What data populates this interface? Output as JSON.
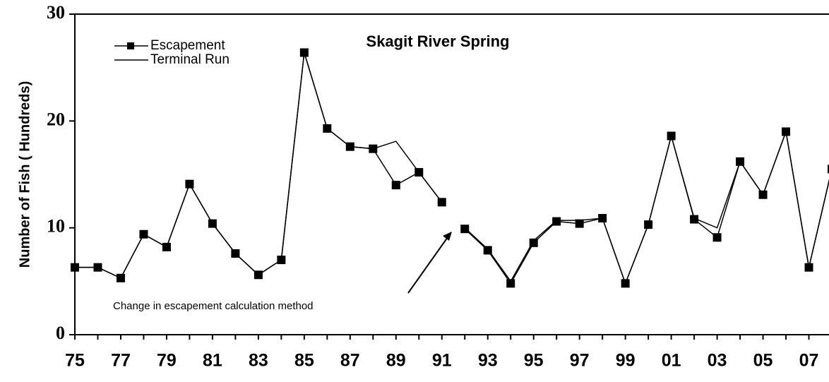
{
  "chart_data": {
    "type": "line",
    "title": "Skagit River Spring",
    "y_label": "Number of Fish ( Hundreds)",
    "annotation": "Change in escapement calculation method",
    "x": [
      1975,
      1976,
      1977,
      1978,
      1979,
      1980,
      1981,
      1982,
      1983,
      1984,
      1985,
      1986,
      1987,
      1988,
      1989,
      1990,
      1991,
      1992,
      1993,
      1994,
      1995,
      1996,
      1997,
      1998,
      1999,
      2000,
      2001,
      2002,
      2003,
      2004,
      2005,
      2006,
      2007,
      2008
    ],
    "series": [
      {
        "name": "Terminal Run",
        "color": "#000000",
        "markers": false,
        "values": [
          6.3,
          6.3,
          5.3,
          9.4,
          8.2,
          14.1,
          10.4,
          7.6,
          5.6,
          7.0,
          26.4,
          19.3,
          17.6,
          17.4,
          18.1,
          15.2,
          12.4,
          10.0,
          8.0,
          5.0,
          8.8,
          10.7,
          10.7,
          10.9,
          4.8,
          10.3,
          18.6,
          10.9,
          10.0,
          16.2,
          13.1,
          19.0,
          6.3,
          15.5
        ]
      },
      {
        "name": "Escapement",
        "color": "#000000",
        "markers": true,
        "values": [
          6.3,
          6.3,
          5.3,
          9.4,
          8.2,
          14.1,
          10.4,
          7.6,
          5.6,
          7.0,
          26.4,
          19.3,
          17.6,
          17.4,
          14.0,
          15.2,
          12.4,
          9.9,
          7.9,
          4.8,
          8.6,
          10.6,
          10.4,
          10.9,
          4.8,
          10.3,
          18.6,
          10.8,
          9.1,
          16.2,
          13.1,
          19.0,
          6.3,
          15.5
        ]
      }
    ],
    "line_break_after": 1991,
    "xlim": [
      1975,
      2008
    ],
    "xticks": [
      {
        "value": 1975,
        "label": "75"
      },
      {
        "value": 1977,
        "label": "77"
      },
      {
        "value": 1979,
        "label": "79"
      },
      {
        "value": 1981,
        "label": "81"
      },
      {
        "value": 1983,
        "label": "83"
      },
      {
        "value": 1985,
        "label": "85"
      },
      {
        "value": 1987,
        "label": "87"
      },
      {
        "value": 1989,
        "label": "89"
      },
      {
        "value": 1991,
        "label": "91"
      },
      {
        "value": 1993,
        "label": "93"
      },
      {
        "value": 1995,
        "label": "95"
      },
      {
        "value": 1997,
        "label": "97"
      },
      {
        "value": 1999,
        "label": "99"
      },
      {
        "value": 2001,
        "label": "01"
      },
      {
        "value": 2003,
        "label": "03"
      },
      {
        "value": 2005,
        "label": "05"
      },
      {
        "value": 2007,
        "label": "07"
      }
    ],
    "ylim": [
      0,
      30
    ],
    "yticks": [
      0,
      10,
      20,
      30
    ],
    "legend": "top-left"
  }
}
